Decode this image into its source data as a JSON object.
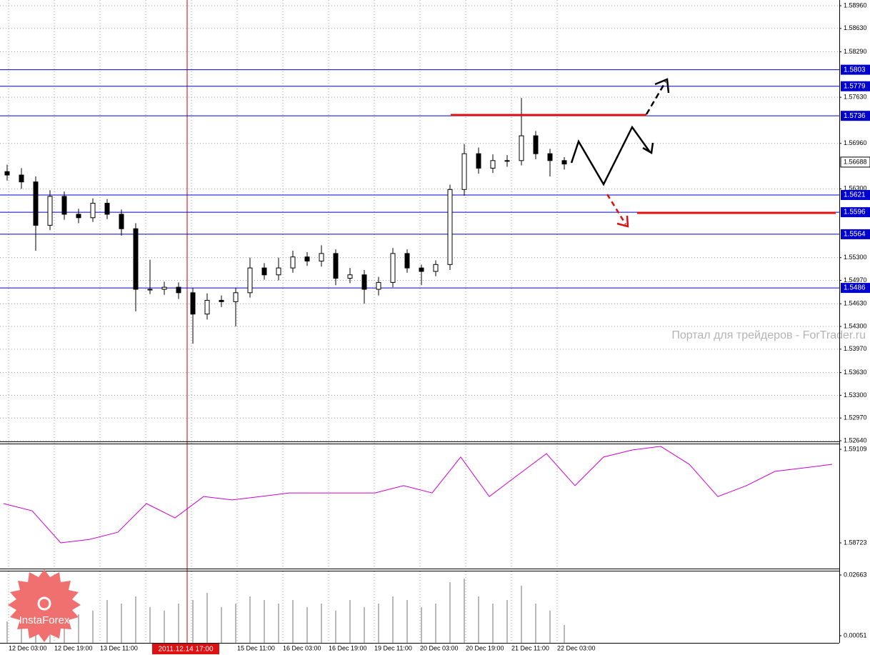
{
  "chart_data": [
    {
      "type": "candlestick",
      "open": [
        1.5655,
        1.565,
        1.564,
        1.5577,
        1.5619,
        1.5593,
        1.5588,
        1.5609,
        1.5593,
        1.5572,
        1.5484,
        1.5484,
        1.5487,
        1.5479,
        1.5448,
        1.5468,
        1.5466,
        1.5479,
        1.5515,
        1.5505,
        1.5515,
        1.5531,
        1.5525,
        1.5536,
        1.55,
        1.5505,
        1.5484,
        1.5494,
        1.5536,
        1.5515,
        1.551,
        1.552,
        1.5629,
        1.5681,
        1.566,
        1.5671,
        1.5671,
        1.5707,
        1.5681,
        1.5671
      ],
      "high": [
        1.5665,
        1.566,
        1.5648,
        1.5628,
        1.5626,
        1.5601,
        1.5616,
        1.5615,
        1.56,
        1.558,
        1.5527,
        1.5495,
        1.5494,
        1.5486,
        1.5478,
        1.5475,
        1.5486,
        1.553,
        1.5522,
        1.553,
        1.554,
        1.5538,
        1.5548,
        1.5542,
        1.5515,
        1.5512,
        1.5502,
        1.5544,
        1.5542,
        1.552,
        1.5526,
        1.5636,
        1.5695,
        1.569,
        1.568,
        1.5679,
        1.5762,
        1.5714,
        1.5688,
        1.5676
      ],
      "low": [
        1.5642,
        1.563,
        1.554,
        1.557,
        1.5585,
        1.558,
        1.5582,
        1.5586,
        1.5562,
        1.5452,
        1.5477,
        1.5476,
        1.547,
        1.5405,
        1.544,
        1.5458,
        1.543,
        1.5472,
        1.5498,
        1.5497,
        1.5508,
        1.5518,
        1.5517,
        1.549,
        1.5493,
        1.5463,
        1.5475,
        1.5487,
        1.5508,
        1.549,
        1.5503,
        1.5512,
        1.562,
        1.5652,
        1.5653,
        1.5662,
        1.5664,
        1.5673,
        1.5648,
        1.5658
      ],
      "close": [
        1.565,
        1.564,
        1.5577,
        1.5619,
        1.5593,
        1.5588,
        1.5609,
        1.5593,
        1.5572,
        1.5484,
        1.5484,
        1.5487,
        1.5479,
        1.5448,
        1.5468,
        1.5466,
        1.5479,
        1.5515,
        1.5505,
        1.5515,
        1.5531,
        1.5525,
        1.5536,
        1.55,
        1.5505,
        1.5484,
        1.5494,
        1.5536,
        1.5515,
        1.551,
        1.552,
        1.5629,
        1.5681,
        1.566,
        1.5671,
        1.5671,
        1.5707,
        1.5681,
        1.5671,
        1.5666
      ],
      "color": "#000000",
      "ylim": [
        1.5264,
        1.5896
      ],
      "yticks": [
        {
          "value": 1.5896,
          "label": "1.58960"
        },
        {
          "value": 1.5863,
          "label": "1.58630"
        },
        {
          "value": 1.5829,
          "label": "1.58290"
        },
        {
          "value": 1.5763,
          "label": "1.57630"
        },
        {
          "value": 1.5696,
          "label": "1.56960"
        },
        {
          "value": 1.563,
          "label": "1.56300"
        },
        {
          "value": 1.553,
          "label": "1.55300"
        },
        {
          "value": 1.5497,
          "label": "1.54970"
        },
        {
          "value": 1.5463,
          "label": "1.54630"
        },
        {
          "value": 1.543,
          "label": "1.54300"
        },
        {
          "value": 1.5397,
          "label": "1.53970"
        },
        {
          "value": 1.5363,
          "label": "1.53630"
        },
        {
          "value": 1.533,
          "label": "1.53300"
        },
        {
          "value": 1.5297,
          "label": "1.52970"
        },
        {
          "value": 1.5264,
          "label": "1.52640"
        }
      ],
      "levels": [
        1.5803,
        1.5779,
        1.5736,
        1.5621,
        1.5596,
        1.5564,
        1.5486
      ],
      "level_color": "#0000cc",
      "current_price": 1.56688,
      "xlabels": [
        "12 Dec 03:00",
        "12 Dec 19:00",
        "13 Dec 11:00",
        null,
        null,
        "15 Dec 11:00",
        "16 Dec 03:00",
        "16 Dec 19:00",
        "19 Dec 11:00",
        "20 Dec 03:00",
        "20 Dec 19:00",
        "21 Dec 11:00",
        "22 Dec 03:00"
      ],
      "cursor_label": "2011.12.14 17:00",
      "grid": true,
      "watermark": "Портал для трейдеров - ForTrader.ru"
    },
    {
      "type": "line",
      "values": [
        1.58885,
        1.58855,
        1.58723,
        1.58737,
        1.58767,
        1.58885,
        1.58826,
        1.58914,
        1.589,
        1.58914,
        1.58929,
        1.58929,
        1.58929,
        1.58929,
        1.58959,
        1.58929,
        1.59077,
        1.58914,
        1.59003,
        1.59091,
        1.58959,
        1.59077,
        1.59106,
        1.59121,
        1.59047,
        1.58914,
        1.58959,
        1.59018,
        1.59032,
        1.59047
      ],
      "color": "#cc00cc",
      "ylim": [
        1.58723,
        1.59109
      ],
      "yticks": [
        1.59109,
        1.58723
      ]
    },
    {
      "type": "bar",
      "values": [
        0.00665,
        0.00972,
        0.00819,
        0.01433,
        0.01279,
        0.00972,
        0.01126,
        0.01586,
        0.01433,
        0.0174,
        0.01279,
        0.01126,
        0.01433,
        0.01586,
        0.01893,
        0.01279,
        0.01433,
        0.0174,
        0.01586,
        0.01433,
        0.01586,
        0.01279,
        0.01433,
        0.01126,
        0.01586,
        0.01279,
        0.01433,
        0.0174,
        0.01586,
        0.01279,
        0.01433,
        0.02354,
        0.02507,
        0.0174,
        0.01433,
        0.01586,
        0.022,
        0.01433,
        0.01126,
        0.00512
      ],
      "color": "#b8b8b8",
      "ylim": [
        0.00051,
        0.02663
      ],
      "yticks": [
        0.02663,
        0.00051
      ]
    }
  ],
  "logo": "InstaForex"
}
